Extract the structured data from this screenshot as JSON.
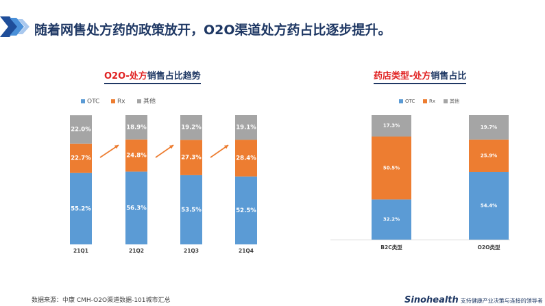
{
  "header": {
    "title": "随着网售处方药的政策放开，O2O渠道处方药占比逐步提升。",
    "accent_colors": [
      "#1f4e9a",
      "#4a90d9",
      "#a9c8ee"
    ]
  },
  "footer": {
    "source": "数据来源：中康 CMH-O2O渠道数据-101城市汇总",
    "brand": "Sinohealth",
    "slogan": "支持健康产业决策与连接的领导者"
  },
  "chart_data": [
    {
      "type": "bar",
      "stacked": true,
      "normalized": true,
      "title_parts": [
        {
          "text": "O2O-处方",
          "color": "#e02020"
        },
        {
          "text": "销售占比趋势",
          "color": "#1f3864"
        }
      ],
      "categories": [
        "21Q1",
        "21Q2",
        "21Q3",
        "21Q4"
      ],
      "series": [
        {
          "name": "OTC",
          "color": "#5b9bd5",
          "values": [
            55.2,
            56.3,
            53.5,
            52.5
          ]
        },
        {
          "name": "Rx",
          "color": "#ed7d31",
          "values": [
            22.7,
            24.8,
            27.3,
            28.4
          ]
        },
        {
          "name": "其他",
          "color": "#a5a5a5",
          "values": [
            22.0,
            18.9,
            19.2,
            19.1
          ]
        }
      ],
      "value_labels": [
        [
          "55.2%",
          "56.3%",
          "53.5%",
          "52.5%"
        ],
        [
          "22.7%",
          "24.8%",
          "27.3%",
          "28.4%"
        ],
        [
          "22.0%",
          "18.9%",
          "19.2%",
          "19.1%"
        ]
      ],
      "trend_arrows": true,
      "trend_arrow_color": "#ed7d31",
      "ylim": [
        0,
        100
      ],
      "legend": "top",
      "grid": false
    },
    {
      "type": "bar",
      "stacked": true,
      "normalized": true,
      "title_parts": [
        {
          "text": "药店类型-处方",
          "color": "#e02020"
        },
        {
          "text": "销售占比",
          "color": "#1f3864"
        }
      ],
      "categories": [
        "B2C类型",
        "O2O类型"
      ],
      "series": [
        {
          "name": "OTC",
          "color": "#5b9bd5",
          "values": [
            32.2,
            54.4
          ]
        },
        {
          "name": "Rx",
          "color": "#ed7d31",
          "values": [
            50.5,
            25.9
          ]
        },
        {
          "name": "其他",
          "color": "#a5a5a5",
          "values": [
            17.3,
            19.7
          ]
        }
      ],
      "value_labels": [
        [
          "32.2%",
          "54.4%"
        ],
        [
          "50.5%",
          "25.9%"
        ],
        [
          "17.3%",
          "19.7%"
        ]
      ],
      "ylim": [
        0,
        100
      ],
      "legend": "top",
      "grid": false
    }
  ]
}
